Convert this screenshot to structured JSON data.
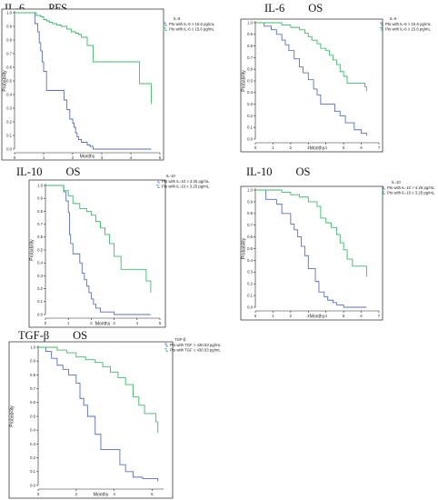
{
  "page": {
    "panels": [
      {
        "title_left": "IL-6",
        "title_right": "PFS"
      },
      {
        "title_left": "IL-6",
        "title_right": "OS"
      },
      {
        "title_left": "IL-10",
        "title_right": "OS"
      },
      {
        "title_left": "IL-10",
        "title_right": "OS"
      },
      {
        "title_left": "TGF-β",
        "title_right": "OS"
      }
    ]
  },
  "colors": {
    "blue": "#5b6fb8",
    "green": "#3fb86a"
  },
  "chart_data": [
    {
      "type": "line",
      "title": "IL-6    PFS",
      "xlabel": "Months",
      "ylabel": "Probability",
      "xlim": [
        0,
        5
      ],
      "ylim": [
        0,
        1.0
      ],
      "x_ticks": [
        "0",
        "1",
        "2",
        "3",
        "4",
        "5"
      ],
      "y_ticks": [
        "0.0",
        "0.1",
        "0.2",
        "0.3",
        "0.4",
        "0.5",
        "0.6",
        "0.7",
        "0.8",
        "0.9",
        "1.0"
      ],
      "legend_title": "IL-6",
      "series": [
        {
          "name": "Pts with IL-6 > 15.6 pg/mL",
          "color": "#5b6fb8",
          "x": [
            0,
            0.65,
            0.7,
            0.8,
            0.85,
            0.9,
            0.95,
            1.0,
            1.1,
            1.6,
            1.7,
            1.8,
            1.9,
            2.0,
            2.05,
            2.1,
            2.15,
            2.2,
            2.3,
            2.5,
            2.6,
            2.7,
            4.7
          ],
          "y": [
            1.0,
            1.0,
            0.92,
            0.86,
            0.78,
            0.72,
            0.64,
            0.57,
            0.43,
            0.43,
            0.36,
            0.29,
            0.22,
            0.19,
            0.16,
            0.12,
            0.09,
            0.07,
            0.05,
            0.03,
            0.02,
            0.0,
            0.0
          ]
        },
        {
          "name": "Pts with IL-6 ≤ 15.6 pg/mL",
          "color": "#3fb86a",
          "x": [
            0,
            0.7,
            0.75,
            0.9,
            1.0,
            1.1,
            1.2,
            1.3,
            1.45,
            1.6,
            1.8,
            1.95,
            2.1,
            2.2,
            2.3,
            2.5,
            2.7,
            4.2,
            4.3,
            4.6,
            4.7
          ],
          "y": [
            1.0,
            1.0,
            0.98,
            0.97,
            0.95,
            0.94,
            0.93,
            0.92,
            0.91,
            0.9,
            0.88,
            0.86,
            0.85,
            0.84,
            0.82,
            0.76,
            0.64,
            0.64,
            0.48,
            0.48,
            0.33
          ]
        }
      ]
    },
    {
      "type": "line",
      "title": "IL-6    OS",
      "xlabel": "Months",
      "ylabel": "Probability",
      "xlim": [
        0,
        7
      ],
      "ylim": [
        0,
        1.0
      ],
      "x_ticks": [
        "0",
        "1",
        "2",
        "3",
        "4",
        "5",
        "6",
        "7"
      ],
      "y_ticks": [
        "0.0",
        "0.1",
        "0.2",
        "0.3",
        "0.4",
        "0.5",
        "0.6",
        "0.7",
        "0.8",
        "0.9",
        "1.0"
      ],
      "legend_title": "IL-6",
      "series": [
        {
          "name": "Pts with IL-6 > 15.6 pg/mL",
          "color": "#5b6fb8",
          "x": [
            0,
            0.5,
            0.9,
            1.2,
            1.5,
            1.7,
            1.9,
            2.2,
            2.5,
            2.7,
            3.0,
            3.3,
            3.5,
            3.7,
            4.0,
            4.5,
            4.8,
            5.1,
            5.6,
            6.0,
            6.3
          ],
          "y": [
            1.0,
            0.97,
            0.94,
            0.9,
            0.85,
            0.81,
            0.76,
            0.69,
            0.62,
            0.57,
            0.51,
            0.43,
            0.38,
            0.3,
            0.3,
            0.24,
            0.2,
            0.14,
            0.08,
            0.05,
            0.03
          ]
        },
        {
          "name": "Pts with IL-6 ≤ 15.6 pg/mL",
          "color": "#3fb86a",
          "x": [
            0,
            0.9,
            1.5,
            2.0,
            2.5,
            2.8,
            3.0,
            3.2,
            3.5,
            3.7,
            4.0,
            4.2,
            4.4,
            4.6,
            4.8,
            5.0,
            5.2,
            6.0,
            6.2,
            6.3
          ],
          "y": [
            1.0,
            1.0,
            0.98,
            0.96,
            0.94,
            0.91,
            0.88,
            0.85,
            0.82,
            0.78,
            0.76,
            0.72,
            0.68,
            0.64,
            0.58,
            0.54,
            0.48,
            0.48,
            0.45,
            0.41
          ]
        }
      ]
    },
    {
      "type": "line",
      "title": "IL-10    OS",
      "xlabel": "Months",
      "ylabel": "Probability",
      "xlim": [
        0,
        5
      ],
      "ylim": [
        0,
        1.0
      ],
      "x_ticks": [
        "0",
        "1",
        "2",
        "3",
        "4",
        "5"
      ],
      "y_ticks": [
        "0.0",
        "0.1",
        "0.2",
        "0.3",
        "0.4",
        "0.5",
        "0.6",
        "0.7",
        "0.8",
        "0.9",
        "1.0"
      ],
      "legend_title": "IL-10",
      "series": [
        {
          "name": "Pts with IL-10 > 3.25 pg/mL",
          "color": "#5b6fb8",
          "x": [
            0,
            0.6,
            0.8,
            0.9,
            1.0,
            1.05,
            1.1,
            1.2,
            1.5,
            1.6,
            1.7,
            1.8,
            1.9,
            2.0,
            2.1,
            2.2,
            2.4,
            3.0,
            4.6
          ],
          "y": [
            1.0,
            1.0,
            0.95,
            0.88,
            0.79,
            0.62,
            0.55,
            0.47,
            0.4,
            0.32,
            0.27,
            0.22,
            0.17,
            0.12,
            0.08,
            0.05,
            0.02,
            0.0,
            0.0
          ]
        },
        {
          "name": "Pts with IL-10 ≤ 3.25 pg/mL",
          "color": "#3fb86a",
          "x": [
            0,
            0.6,
            0.8,
            1.0,
            1.2,
            1.5,
            1.8,
            2.0,
            2.2,
            2.4,
            2.6,
            2.8,
            3.0,
            3.3,
            4.2,
            4.4,
            4.6
          ],
          "y": [
            1.0,
            1.0,
            0.96,
            0.92,
            0.86,
            0.82,
            0.8,
            0.77,
            0.72,
            0.67,
            0.62,
            0.55,
            0.45,
            0.35,
            0.35,
            0.26,
            0.17
          ]
        }
      ]
    },
    {
      "type": "line",
      "title": "IL-10    OS",
      "xlabel": "Months",
      "ylabel": "Probability",
      "xlim": [
        0,
        7
      ],
      "ylim": [
        0,
        1.0
      ],
      "x_ticks": [
        "0",
        "1",
        "2",
        "3",
        "4",
        "5",
        "6",
        "7"
      ],
      "y_ticks": [
        "0.0",
        "0.1",
        "0.2",
        "0.3",
        "0.4",
        "0.5",
        "0.6",
        "0.7",
        "0.8",
        "0.9",
        "1.0"
      ],
      "legend_title": "IL-10",
      "series": [
        {
          "name": "Pts with IL-10 > 3.25 pg/mL",
          "color": "#5b6fb8",
          "x": [
            0,
            0.6,
            1.2,
            1.5,
            2.0,
            2.2,
            2.4,
            2.6,
            2.8,
            3.0,
            3.2,
            3.4,
            3.6,
            3.9,
            4.1,
            4.4,
            4.6,
            5.0,
            6.3
          ],
          "y": [
            1.0,
            0.92,
            0.88,
            0.8,
            0.71,
            0.66,
            0.6,
            0.52,
            0.44,
            0.33,
            0.33,
            0.22,
            0.13,
            0.09,
            0.06,
            0.04,
            0.02,
            0.0,
            0.0
          ]
        },
        {
          "name": "Pts with IL-10 ≤ 3.25 pg/mL",
          "color": "#3fb86a",
          "x": [
            0,
            0.5,
            1.5,
            2.0,
            2.5,
            3.0,
            3.5,
            3.7,
            4.0,
            4.3,
            4.6,
            4.8,
            5.0,
            5.2,
            5.5,
            6.0,
            6.3
          ],
          "y": [
            1.0,
            1.0,
            0.98,
            0.96,
            0.94,
            0.9,
            0.86,
            0.76,
            0.72,
            0.68,
            0.62,
            0.55,
            0.49,
            0.41,
            0.35,
            0.35,
            0.26
          ]
        }
      ]
    },
    {
      "type": "line",
      "title": "TGF-β    OS",
      "xlabel": "Months",
      "ylabel": "Probability",
      "xlim": [
        0,
        6.6
      ],
      "ylim": [
        0,
        1.0
      ],
      "x_ticks": [
        "0",
        "2",
        "4",
        "6"
      ],
      "y_ticks": [
        "0.0",
        "0.1",
        "0.2",
        "0.3",
        "0.4",
        "0.5",
        "0.6",
        "0.7",
        "0.8",
        "0.9",
        "1.0"
      ],
      "legend_title": "TGF-β",
      "series": [
        {
          "name": "Pts with TGF > 430.53 pg/mL",
          "color": "#5b6fb8",
          "x": [
            0,
            0.4,
            0.7,
            1.0,
            1.3,
            1.6,
            2.0,
            2.2,
            2.4,
            2.6,
            2.8,
            3.0,
            3.3,
            3.6,
            4.0,
            4.3,
            4.6,
            5.0,
            5.5,
            6.0,
            6.3
          ],
          "y": [
            1.0,
            0.97,
            0.92,
            0.87,
            0.84,
            0.8,
            0.74,
            0.63,
            0.58,
            0.5,
            0.5,
            0.37,
            0.26,
            0.26,
            0.26,
            0.15,
            0.1,
            0.06,
            0.05,
            0.05,
            0.03
          ]
        },
        {
          "name": "Pts with TGF ≤ 430.53 pg/mL",
          "color": "#3fb86a",
          "x": [
            0,
            0.6,
            1.0,
            1.5,
            2.0,
            2.5,
            3.0,
            3.4,
            3.8,
            4.2,
            4.6,
            5.0,
            5.3,
            5.6,
            6.0,
            6.2,
            6.3
          ],
          "y": [
            1.0,
            1.0,
            0.98,
            0.96,
            0.93,
            0.91,
            0.89,
            0.86,
            0.82,
            0.78,
            0.73,
            0.64,
            0.58,
            0.52,
            0.52,
            0.46,
            0.38
          ]
        }
      ]
    }
  ]
}
